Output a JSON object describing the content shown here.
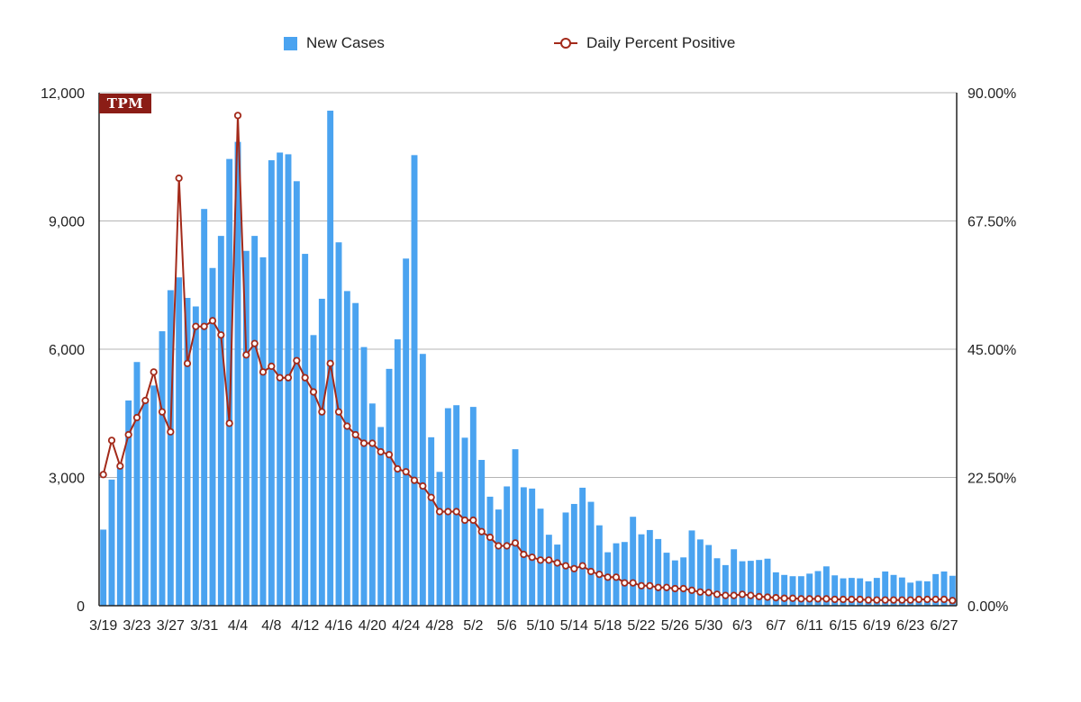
{
  "logo_text": "TPM",
  "colors": {
    "bar": "#4aa3f0",
    "line": "#a32a1a",
    "grid": "#b5b5b5",
    "logo_bg": "#8b1d16"
  },
  "legend": {
    "bar_label": "New Cases",
    "line_label": "Daily Percent Positive"
  },
  "chart_data": {
    "type": "bar",
    "title": "",
    "xlabel": "",
    "ylabel": "",
    "legend_position": "top",
    "grid": true,
    "y_left": {
      "min": 0,
      "max": 12000,
      "ticks": [
        "0",
        "3,000",
        "6,000",
        "9,000",
        "12,000"
      ]
    },
    "y_right": {
      "min": 0,
      "max": 90,
      "ticks": [
        "0.00%",
        "22.50%",
        "45.00%",
        "67.50%",
        "90.00%"
      ]
    },
    "x_tick_labels": [
      "3/19",
      "3/23",
      "3/27",
      "3/31",
      "4/4",
      "4/8",
      "4/12",
      "4/16",
      "4/20",
      "4/24",
      "4/28",
      "5/2",
      "5/6",
      "5/10",
      "5/14",
      "5/18",
      "5/22",
      "5/26",
      "5/30",
      "6/3",
      "6/7",
      "6/11",
      "6/15",
      "6/19",
      "6/23",
      "6/27"
    ],
    "x": [
      "3/19",
      "3/20",
      "3/21",
      "3/22",
      "3/23",
      "3/24",
      "3/25",
      "3/26",
      "3/27",
      "3/28",
      "3/29",
      "3/30",
      "3/31",
      "4/1",
      "4/2",
      "4/3",
      "4/4",
      "4/5",
      "4/6",
      "4/7",
      "4/8",
      "4/9",
      "4/10",
      "4/11",
      "4/12",
      "4/13",
      "4/14",
      "4/15",
      "4/16",
      "4/17",
      "4/18",
      "4/19",
      "4/20",
      "4/21",
      "4/22",
      "4/23",
      "4/24",
      "4/25",
      "4/26",
      "4/27",
      "4/28",
      "4/29",
      "4/30",
      "5/1",
      "5/2",
      "5/3",
      "5/4",
      "5/5",
      "5/6",
      "5/7",
      "5/8",
      "5/9",
      "5/10",
      "5/11",
      "5/12",
      "5/13",
      "5/14",
      "5/15",
      "5/16",
      "5/17",
      "5/18",
      "5/19",
      "5/20",
      "5/21",
      "5/22",
      "5/23",
      "5/24",
      "5/25",
      "5/26",
      "5/27",
      "5/28",
      "5/29",
      "5/30",
      "5/31",
      "6/1",
      "6/2",
      "6/3",
      "6/4",
      "6/5",
      "6/6",
      "6/7",
      "6/8",
      "6/9",
      "6/10",
      "6/11",
      "6/12",
      "6/13",
      "6/14",
      "6/15",
      "6/16",
      "6/17",
      "6/18",
      "6/19",
      "6/20",
      "6/21",
      "6/22",
      "6/23",
      "6/24",
      "6/25",
      "6/26",
      "6/27",
      "6/28"
    ],
    "series": [
      {
        "name": "New Cases",
        "type": "bar",
        "axis": "left",
        "values": [
          1780,
          2950,
          3250,
          4800,
          5700,
          4800,
          5150,
          6420,
          7380,
          7680,
          7200,
          7000,
          9280,
          7900,
          8650,
          10450,
          10850,
          8300,
          8650,
          8150,
          10420,
          10600,
          10560,
          9930,
          8230,
          6330,
          7180,
          11580,
          8500,
          7360,
          7080,
          6050,
          4730,
          4180,
          5540,
          6230,
          8120,
          10540,
          5890,
          3940,
          3130,
          4620,
          4690,
          3930,
          4650,
          3410,
          2550,
          2250,
          2790,
          3660,
          2770,
          2740,
          2270,
          1660,
          1430,
          2180,
          2380,
          2760,
          2430,
          1880,
          1250,
          1460,
          1490,
          2080,
          1670,
          1770,
          1560,
          1240,
          1060,
          1130,
          1760,
          1550,
          1420,
          1110,
          950,
          1320,
          1040,
          1050,
          1070,
          1100,
          780,
          720,
          690,
          690,
          750,
          810,
          920,
          710,
          640,
          650,
          640,
          570,
          650,
          800,
          720,
          660,
          540,
          580,
          570,
          740,
          800,
          700
        ]
      },
      {
        "name": "Daily Percent Positive",
        "type": "line",
        "axis": "right",
        "values": [
          23.0,
          29.0,
          24.5,
          30.0,
          33.0,
          36.0,
          41.0,
          34.0,
          30.5,
          75.0,
          42.5,
          49.0,
          49.0,
          50.0,
          47.5,
          32.0,
          86.0,
          44.0,
          46.0,
          41.0,
          42.0,
          40.0,
          40.0,
          43.0,
          40.0,
          37.5,
          34.0,
          42.5,
          34.0,
          31.5,
          30.0,
          28.5,
          28.5,
          27.0,
          26.5,
          24.0,
          23.5,
          22.0,
          21.0,
          19.0,
          16.5,
          16.5,
          16.5,
          15.0,
          15.0,
          13.0,
          12.0,
          10.5,
          10.5,
          11.0,
          9.0,
          8.5,
          8.0,
          8.0,
          7.5,
          7.0,
          6.5,
          7.0,
          6.0,
          5.5,
          5.0,
          5.0,
          4.0,
          4.0,
          3.5,
          3.5,
          3.2,
          3.2,
          3.0,
          3.0,
          2.7,
          2.4,
          2.3,
          2.0,
          1.8,
          1.8,
          2.0,
          1.8,
          1.6,
          1.5,
          1.4,
          1.3,
          1.3,
          1.2,
          1.2,
          1.2,
          1.2,
          1.1,
          1.1,
          1.1,
          1.1,
          1.0,
          1.0,
          1.0,
          1.0,
          1.0,
          1.0,
          1.1,
          1.1,
          1.1,
          1.1,
          0.9
        ]
      }
    ]
  }
}
